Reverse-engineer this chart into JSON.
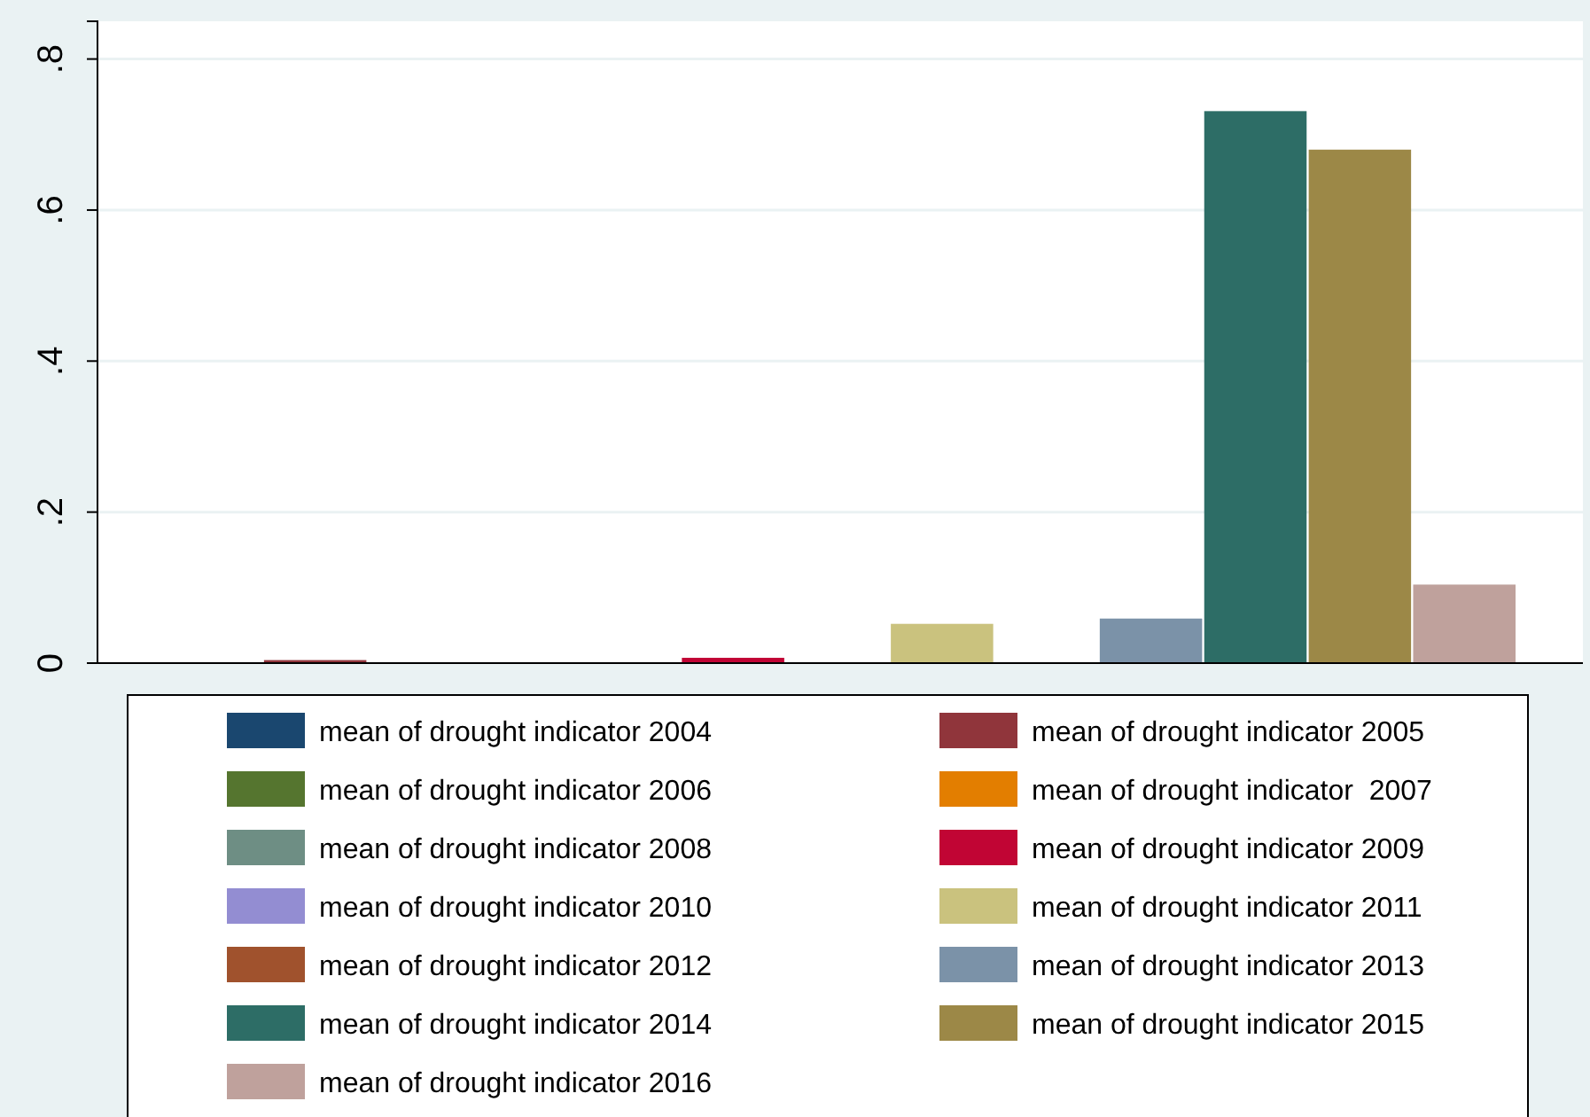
{
  "chart_data": {
    "type": "bar",
    "categories": [
      null
    ],
    "ylim": [
      0,
      0.85
    ],
    "yticks": [
      {
        "value": 0,
        "label": "0"
      },
      {
        "value": 0.2,
        "label": ".2"
      },
      {
        "value": 0.4,
        "label": ".4"
      },
      {
        "value": 0.6,
        "label": ".6"
      },
      {
        "value": 0.8,
        "label": ".8"
      }
    ],
    "grid": "y",
    "legend": "bottom",
    "series": [
      {
        "name": "mean of drought indicator 2004",
        "color": "#1a476f",
        "values": [
          0
        ]
      },
      {
        "name": "mean of drought indicator 2005",
        "color": "#90353b",
        "values": [
          0.004
        ]
      },
      {
        "name": "mean of drought indicator 2006",
        "color": "#55752f",
        "values": [
          0
        ]
      },
      {
        "name": "mean of drought indicator  2007",
        "color": "#e37e00",
        "values": [
          0
        ]
      },
      {
        "name": "mean of drought indicator 2008",
        "color": "#6e8e84",
        "values": [
          0
        ]
      },
      {
        "name": "mean of drought indicator 2009",
        "color": "#c10534",
        "values": [
          0.007
        ]
      },
      {
        "name": "mean of drought indicator 2010",
        "color": "#938dd2",
        "values": [
          0
        ]
      },
      {
        "name": "mean of drought indicator 2011",
        "color": "#cac27e",
        "values": [
          0.052
        ]
      },
      {
        "name": "mean of drought indicator 2012",
        "color": "#a0522d",
        "values": [
          0
        ]
      },
      {
        "name": "mean of drought indicator 2013",
        "color": "#7b92a8",
        "values": [
          0.059
        ]
      },
      {
        "name": "mean of drought indicator 2014",
        "color": "#2d6d66",
        "values": [
          0.731
        ]
      },
      {
        "name": "mean of drought indicator 2015",
        "color": "#9c8847",
        "values": [
          0.68
        ]
      },
      {
        "name": "mean of drought indicator 2016",
        "color": "#bfa19c",
        "values": [
          0.104
        ]
      }
    ]
  }
}
